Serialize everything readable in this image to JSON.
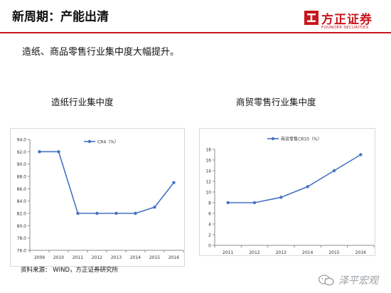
{
  "header": {
    "title": "新周期：产能出清",
    "logo_cn": "方正证券",
    "logo_en": "FOUNDER SECURITIES"
  },
  "subtitle": "造纸、商品零售行业集中度大幅提升。",
  "source": "资料来源：  WIND，方正证券研究所",
  "watermark": "泽平宏观",
  "colors": {
    "accent": "#c8161e",
    "series": "#4472c4"
  },
  "chart_data": [
    {
      "type": "line",
      "title": "造纸行业集中度",
      "x": [
        "2009",
        "2010",
        "2011",
        "2012",
        "2013",
        "2014",
        "2015",
        "2016"
      ],
      "series": [
        {
          "name": "CR4（%）",
          "values": [
            92.0,
            92.0,
            82.0,
            82.0,
            82.0,
            82.0,
            83.0,
            87.0
          ]
        }
      ],
      "ylim": [
        76.0,
        94.0
      ],
      "yticks": [
        "76.0",
        "78.0",
        "80.0",
        "82.0",
        "84.0",
        "86.0",
        "88.0",
        "90.0",
        "92.0",
        "94.0"
      ],
      "grid": false,
      "legend": "top"
    },
    {
      "type": "line",
      "title": "商贸零售行业集中度",
      "x": [
        "2011",
        "2012",
        "2013",
        "2014",
        "2015",
        "2016"
      ],
      "series": [
        {
          "name": "商贸零售CR10（%）",
          "values": [
            8,
            8,
            9,
            11,
            14,
            17
          ]
        }
      ],
      "ylim": [
        0,
        18
      ],
      "yticks": [
        "0",
        "2",
        "4",
        "6",
        "8",
        "10",
        "12",
        "14",
        "16",
        "18"
      ],
      "grid": false,
      "legend": "top"
    }
  ]
}
